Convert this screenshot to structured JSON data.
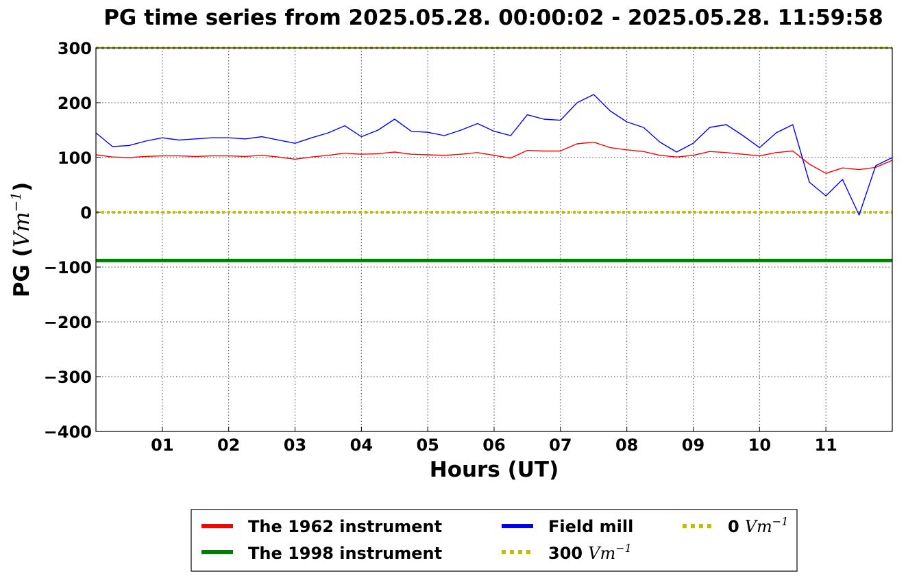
{
  "chart_data": {
    "type": "line",
    "title": "PG time series from 2025.05.28. 00:00:02 - 2025.05.28. 11:59:58",
    "xlabel": "Hours (UT)",
    "ylabel_prefix": "PG (",
    "ylabel_unit": "Vm",
    "ylabel_exp": "−1",
    "ylabel_suffix": ")",
    "xlim": [
      0,
      12
    ],
    "ylim": [
      -400,
      300
    ],
    "grid": true,
    "x_ticks": [
      1,
      2,
      3,
      4,
      5,
      6,
      7,
      8,
      9,
      10,
      11
    ],
    "x_tick_labels": [
      "01",
      "02",
      "03",
      "04",
      "05",
      "06",
      "07",
      "08",
      "09",
      "10",
      "11"
    ],
    "y_ticks": [
      300,
      200,
      100,
      0,
      -100,
      -200,
      -300,
      -400
    ],
    "y_tick_labels": [
      "300",
      "200",
      "100",
      "0",
      "−100",
      "−200",
      "−300",
      "−400"
    ],
    "legend_position": "bottom-center",
    "series": [
      {
        "name": "The 1962 instrument",
        "color": "#ff0000",
        "style": "solid",
        "x": [
          0,
          0.25,
          0.5,
          0.75,
          1,
          1.25,
          1.5,
          1.75,
          2,
          2.25,
          2.5,
          2.75,
          3,
          3.25,
          3.5,
          3.75,
          4,
          4.25,
          4.5,
          4.75,
          5,
          5.25,
          5.5,
          5.75,
          6,
          6.25,
          6.5,
          6.75,
          7,
          7.25,
          7.5,
          7.75,
          8,
          8.25,
          8.5,
          8.75,
          9,
          9.25,
          9.5,
          9.75,
          10,
          10.25,
          10.5,
          10.75,
          11,
          11.25,
          11.5,
          11.75,
          12
        ],
        "y": [
          105,
          101,
          100,
          102,
          103,
          103,
          102,
          103,
          103,
          102,
          104,
          101,
          97,
          101,
          104,
          108,
          106,
          107,
          110,
          106,
          105,
          104,
          106,
          109,
          104,
          99,
          113,
          112,
          112,
          125,
          128,
          118,
          114,
          111,
          104,
          101,
          104,
          111,
          109,
          106,
          103,
          109,
          112,
          88,
          71,
          81,
          78,
          82,
          95
        ]
      },
      {
        "name": "The 1998 instrument",
        "color": "#008000",
        "style": "solid",
        "x": [
          0,
          12
        ],
        "y": [
          -88,
          -88
        ]
      },
      {
        "name": "Field mill",
        "color": "#0000ff",
        "style": "solid",
        "x": [
          0,
          0.25,
          0.5,
          0.75,
          1,
          1.25,
          1.5,
          1.75,
          2,
          2.25,
          2.5,
          2.75,
          3,
          3.25,
          3.5,
          3.75,
          4,
          4.25,
          4.5,
          4.75,
          5,
          5.25,
          5.5,
          5.75,
          6,
          6.25,
          6.5,
          6.75,
          7,
          7.25,
          7.5,
          7.75,
          8,
          8.25,
          8.5,
          8.75,
          9,
          9.25,
          9.5,
          9.75,
          10,
          10.25,
          10.5,
          10.75,
          11,
          11.25,
          11.5,
          11.75,
          12
        ],
        "y": [
          145,
          120,
          122,
          130,
          136,
          132,
          134,
          136,
          136,
          134,
          138,
          132,
          126,
          136,
          145,
          158,
          138,
          150,
          170,
          148,
          146,
          140,
          150,
          162,
          148,
          140,
          178,
          170,
          168,
          200,
          215,
          185,
          165,
          155,
          128,
          110,
          126,
          155,
          160,
          140,
          118,
          145,
          160,
          55,
          30,
          60,
          -5,
          85,
          100
        ]
      },
      {
        "name": "300 Vm⁻¹",
        "legend_number": "300",
        "legend_unit": "Vm",
        "legend_exp": "−1",
        "color": "#bfbf00",
        "style": "dotted",
        "x": [
          0,
          12
        ],
        "y": [
          300,
          300
        ]
      },
      {
        "name": "0 Vm⁻¹",
        "legend_number": "0",
        "legend_unit": "Vm",
        "legend_exp": "−1",
        "color": "#bfbf00",
        "style": "dotted",
        "x": [
          0,
          12
        ],
        "y": [
          0,
          0
        ]
      }
    ]
  }
}
